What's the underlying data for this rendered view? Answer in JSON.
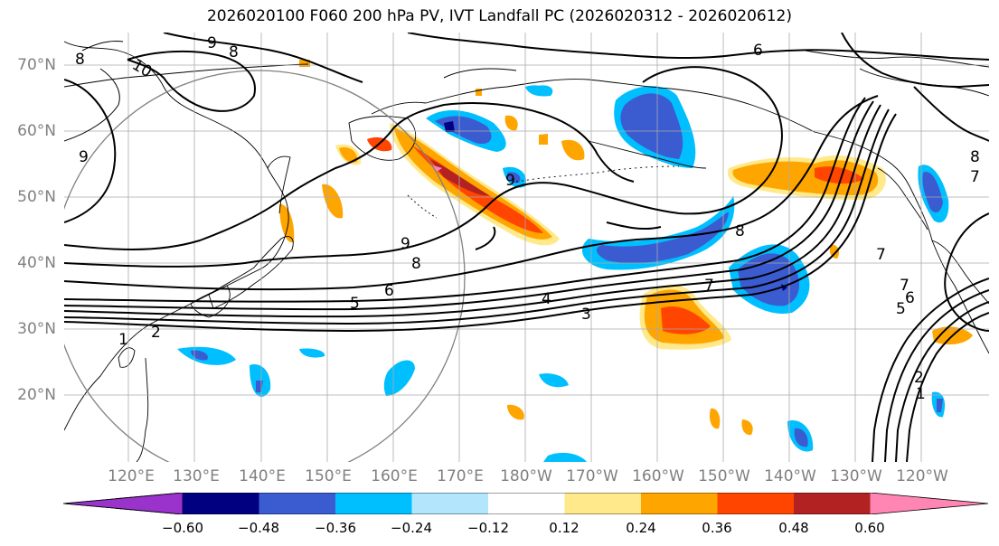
{
  "title": "2026020100 F060 200 hPa PV, IVT Landfall PC (2026020312 - 2026020612)",
  "lat_labels": [
    "70°N",
    "60°N",
    "50°N",
    "40°N",
    "30°N",
    "20°N"
  ],
  "lon_labels": [
    "120°E",
    "130°E",
    "140°E",
    "150°E",
    "160°E",
    "170°E",
    "180°W",
    "170°W",
    "160°W",
    "150°W",
    "140°W",
    "130°W",
    "120°W"
  ],
  "contour_labels": [
    "8",
    "10",
    "9",
    "8",
    "6",
    "9",
    "9",
    "8",
    "9",
    "5",
    "6",
    "4",
    "3",
    "1",
    "2",
    "8",
    "7",
    "7",
    "7",
    "6",
    "5",
    "2",
    "1",
    "7",
    "8"
  ],
  "colorbar": {
    "ticks": [
      "−0.60",
      "−0.48",
      "−0.36",
      "−0.24",
      "−0.12",
      "0.12",
      "0.24",
      "0.36",
      "0.48",
      "0.60"
    ],
    "colors": [
      "#9933cc",
      "#000080",
      "#3b5bd0",
      "#00bfff",
      "#b3e5fc",
      "#ffffff",
      "#ffe98a",
      "#ffa500",
      "#ff4500",
      "#b22222",
      "#ff85b3"
    ]
  }
}
